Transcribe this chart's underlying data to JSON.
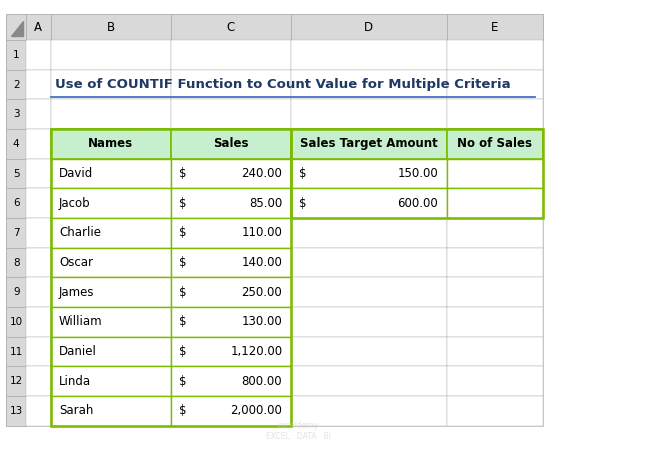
{
  "title": "Use of COUNTIF Function to Count Value for Multiple Criteria",
  "title_color": "#1F3864",
  "title_underline_color": "#4472C4",
  "bg_color": "#FFFFFF",
  "col_header_bg": "#D9D9D9",
  "table_header_bg": "#C6EFCE",
  "table_border_color": "#7CBB00",
  "col_header_border": "#AAAAAA",
  "col_letters": [
    "A",
    "B",
    "C",
    "D",
    "E"
  ],
  "table_headers": [
    "Names",
    "Sales",
    "Sales Target Amount",
    "No of Sales"
  ],
  "names": [
    "David",
    "Jacob",
    "Charlie",
    "Oscar",
    "James",
    "William",
    "Daniel",
    "Linda",
    "Sarah"
  ],
  "sales_amounts": [
    "240.00",
    "85.00",
    "110.00",
    "140.00",
    "250.00",
    "130.00",
    "1,120.00",
    "800.00",
    "2,000.00"
  ],
  "target_amounts": [
    "150.00",
    "600.00"
  ],
  "watermark": "exceldemy\nEXCEL · DATA · BI"
}
